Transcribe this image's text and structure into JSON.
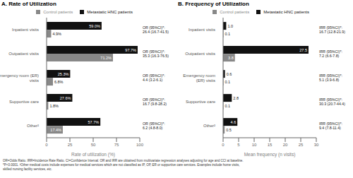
{
  "chart_data": [
    {
      "type": "bar",
      "orientation": "horizontal",
      "title": "A. Rate of Utilization",
      "x_label": "Rate of utilization (%)",
      "categories": [
        "Inpatient visits",
        "Outpatient visits",
        "Emergency room (ER)\nvisits",
        "Supportive care",
        "Other²"
      ],
      "series": [
        {
          "name": "Metastatic HNC patients",
          "color": "#111111",
          "values": [
            59.0,
            97.7,
            25.3,
            27.6,
            57.7
          ],
          "value_labels": [
            "59.0%",
            "97.7%",
            "25.3%",
            "27.6%",
            "57.7%"
          ]
        },
        {
          "name": "Control patients",
          "color": "#888888",
          "values": [
            4.9,
            71.2,
            6.8,
            1.8,
            17.4
          ],
          "value_labels": [
            "4.9%",
            "71.2%",
            "6.8%",
            "1.8%",
            "17.4%"
          ]
        }
      ],
      "annotations": [
        "OR (95%CI)*:\n26.4 (16.7-41.5)",
        "OR (95%CI)*:\n35.3 (16.3-76.5)",
        "OR (95%CI)*:\n4.4 (3.2-6.1)",
        "OR (95%CI)*:\n16.7 (9.8-28.2)",
        "OR (95%CI)*:\n6.2 (4.8-8.0)"
      ],
      "xlim": [
        0,
        100
      ],
      "xticks": [
        0,
        25,
        50,
        75,
        100
      ],
      "data_labels": true,
      "legend": "top",
      "grid": false
    },
    {
      "type": "bar",
      "orientation": "horizontal",
      "title": "B. Frequency of Utilization",
      "x_label": "Mean frequency (n visits)",
      "categories": [
        "Inpatient visits",
        "Outpatient visits",
        "Emergency room\n(ER) visits",
        "Supportive care",
        "Other²"
      ],
      "series": [
        {
          "name": "Metastatic HNC patients",
          "color": "#111111",
          "values": [
            1.0,
            27.5,
            0.6,
            2.8,
            4.6
          ],
          "value_labels": [
            "1.0",
            "27.5",
            "0.6",
            "2.8",
            "4.6"
          ]
        },
        {
          "name": "Control patients",
          "color": "#888888",
          "values": [
            0.1,
            3.8,
            0.1,
            0.1,
            0.5
          ],
          "value_labels": [
            "0.1",
            "3.8",
            "0.1",
            "0.1",
            "0.5"
          ]
        }
      ],
      "annotations": [
        "IRR (95%CI)*:\n16.7 (12.8-21.9)",
        "IRR (95%CI)*:\n7.2 (6.6-7.8)",
        "IRR (95%CI)*:\n5.1 (3.9-6.8)",
        "IRR (95%CI)*:\n30.3 (20.7-44.4)",
        "IRR (95%CI)*:\n9.4 (7.8-11.4)"
      ],
      "xlim": [
        0,
        30
      ],
      "xticks": [
        0,
        5,
        10,
        15,
        20,
        25,
        30
      ],
      "data_labels": true,
      "legend": "top",
      "grid": false
    }
  ],
  "footnote": "OR=Odds Ratio. IRR=Incidence Rate Ratio. CI=Confidence Interval. OR and IRR are obtained from multivariate regression analyses adjusting for age and CCI at baseline.\n*P<0.0001. ²Other medical costs include expenses for medical services which are not classified as IP, OP, ER or supportive care services. Examples include home visits,\nskilled nursing facility services, etc."
}
